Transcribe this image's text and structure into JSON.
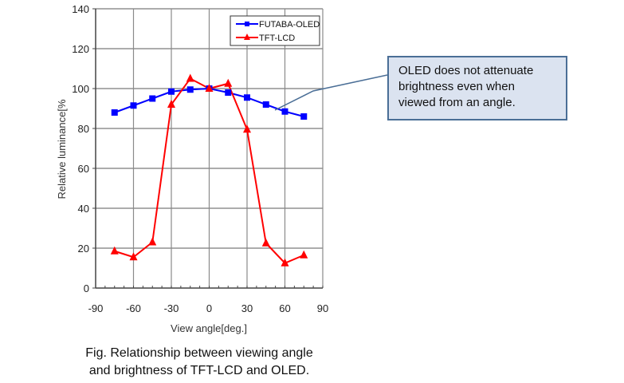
{
  "chart_data": {
    "type": "line",
    "title": "",
    "xlabel": "View angle[deg.]",
    "ylabel": "Relative luminance[%",
    "xlim": [
      -90,
      90
    ],
    "ylim": [
      0,
      140
    ],
    "xticks": [
      -90,
      -60,
      -30,
      0,
      30,
      60,
      90
    ],
    "yticks": [
      0,
      20,
      40,
      60,
      80,
      100,
      120,
      140
    ],
    "grid": true,
    "legend_position": "upper right inside",
    "x": [
      -75,
      -60,
      -45,
      -30,
      -15,
      0,
      15,
      30,
      45,
      60,
      75
    ],
    "series": [
      {
        "name": "FUTABA-OLED",
        "color": "#0000ff",
        "marker": "square",
        "values": [
          88,
          91.5,
          95,
          98.5,
          99.5,
          100,
          98,
          95.5,
          92,
          88.5,
          86
        ]
      },
      {
        "name": "TFT-LCD",
        "color": "#ff0000",
        "marker": "triangle",
        "values": [
          18.5,
          15.5,
          23,
          92,
          105,
          100,
          102.5,
          79.5,
          22.5,
          12.5,
          16.5
        ]
      }
    ]
  },
  "annotation": {
    "lines": [
      "OLED does not attenuate",
      "brightness even when",
      "viewed from an angle."
    ],
    "fill": "#dbe3f0",
    "border": "#4a6e96"
  },
  "caption": {
    "line1": "Fig. Relationship between viewing angle",
    "line2": "and brightness of TFT-LCD and OLED."
  }
}
